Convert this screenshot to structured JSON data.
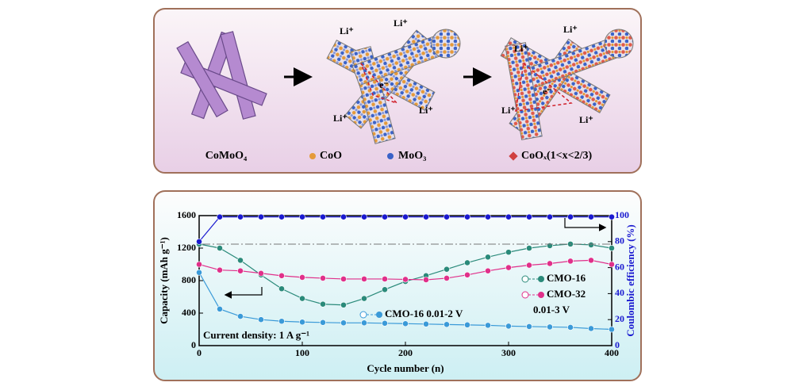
{
  "diagram": {
    "labels": {
      "comoo4": "CoMoO₄",
      "coo": "CoO",
      "moo3": "MoO₃",
      "coox": "CoOₓ(1<x<2/3)"
    },
    "li_labels": [
      "Li⁺",
      "Li⁺",
      "Li⁺",
      "Li⁺",
      "Li⁺",
      "Li⁺",
      "Li⁺",
      "Li⁺"
    ],
    "electron_labels": [
      "e⁻",
      "e⁻"
    ]
  },
  "chart_data": {
    "type": "line",
    "x_label": "Cycle number (n)",
    "y_label": "Capacity (mAh g⁻¹)",
    "y2_label": "Coulombic efficiency (%)",
    "annotations": [
      "0.01-3 V",
      "Current density: 1 A g⁻¹"
    ],
    "x": [
      0,
      20,
      40,
      60,
      80,
      100,
      120,
      140,
      160,
      180,
      200,
      220,
      240,
      260,
      280,
      300,
      320,
      340,
      360,
      380,
      400
    ],
    "xlim": [
      0,
      400
    ],
    "xticks": [
      0,
      100,
      200,
      300,
      400
    ],
    "ylim": [
      0,
      1600
    ],
    "yticks": [
      0,
      400,
      800,
      1200,
      1600
    ],
    "y2lim": [
      0,
      100
    ],
    "y2ticks": [
      0,
      20,
      40,
      60,
      80,
      100
    ],
    "series": [
      {
        "name": "CMO-16",
        "color": "#2a8a7a",
        "values": [
          1250,
          1200,
          1050,
          870,
          700,
          580,
          510,
          500,
          580,
          690,
          790,
          860,
          940,
          1020,
          1090,
          1150,
          1200,
          1230,
          1250,
          1240,
          1200
        ]
      },
      {
        "name": "CMO-32",
        "color": "#e0308a",
        "values": [
          1000,
          930,
          920,
          890,
          860,
          840,
          830,
          820,
          820,
          820,
          815,
          810,
          830,
          870,
          920,
          960,
          990,
          1010,
          1040,
          1050,
          1000
        ]
      },
      {
        "name": "CMO-16 0.01-2 V",
        "color": "#3a9ad8",
        "values": [
          900,
          450,
          360,
          320,
          300,
          290,
          285,
          280,
          280,
          275,
          270,
          265,
          260,
          255,
          250,
          240,
          235,
          230,
          225,
          210,
          200
        ]
      },
      {
        "color": "#1a1ad0",
        "axis": "y2",
        "values": [
          80,
          99,
          99,
          99,
          99,
          99,
          99,
          99,
          99,
          99,
          99,
          99,
          99,
          99,
          99,
          99,
          99,
          99,
          99,
          99,
          99
        ]
      }
    ]
  }
}
